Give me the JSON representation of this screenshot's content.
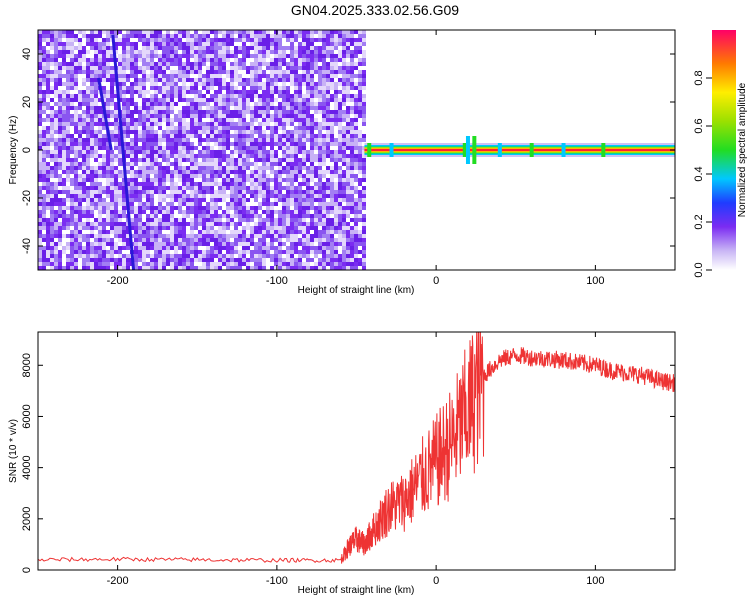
{
  "title": "GN04.2025.333.02.56.G09",
  "colors": {
    "series": "#ee3333",
    "spectrogram_points": "#7b2cf2",
    "background": "#ffffff",
    "axis": "#000000"
  },
  "chart_data": [
    {
      "type": "heatmap",
      "name": "spectrogram",
      "xlabel": "Height of straight line (km)",
      "ylabel": "Frequency (Hz)",
      "xlim": [
        -250,
        150
      ],
      "ylim": [
        -50,
        50
      ],
      "x_ticks": [
        -200,
        -100,
        0,
        100
      ],
      "y_ticks": [
        -40,
        -20,
        0,
        20,
        40
      ],
      "grid": false,
      "noise_region_x": [
        -250,
        -45
      ],
      "carrier_region_x": [
        -45,
        150
      ],
      "carrier_frequency": 0,
      "colorbar": {
        "label": "Normalized spectral amplitude",
        "range": [
          0,
          1
        ],
        "ticks": [
          0.0,
          0.2,
          0.4,
          0.6,
          0.8
        ],
        "tick_labels": [
          "0.0",
          "0.2",
          "0.4",
          "0.6",
          "0.8"
        ]
      }
    },
    {
      "type": "line",
      "name": "snr",
      "xlabel": "Height of straight line (km)",
      "ylabel": "SNR (10 * v/v)",
      "xlim": [
        -250,
        150
      ],
      "ylim": [
        0,
        9300
      ],
      "x_ticks": [
        -200,
        -100,
        0,
        100
      ],
      "y_ticks": [
        0,
        2000,
        4000,
        6000,
        8000
      ],
      "grid": false,
      "series": [
        {
          "x": [
            -250,
            -200,
            -150,
            -100,
            -60,
            -55,
            -50,
            -45,
            -40,
            -30,
            -20,
            -10,
            0,
            10,
            20,
            30,
            40,
            50,
            60,
            70,
            80,
            90,
            100,
            110,
            120,
            130,
            140,
            150
          ],
          "y": [
            400,
            420,
            400,
            380,
            380,
            900,
            1200,
            1000,
            1500,
            2400,
            2700,
            3500,
            4200,
            5000,
            6200,
            7600,
            8200,
            8400,
            8300,
            8250,
            8200,
            8100,
            8000,
            7800,
            7700,
            7600,
            7400,
            7300
          ]
        }
      ]
    }
  ]
}
